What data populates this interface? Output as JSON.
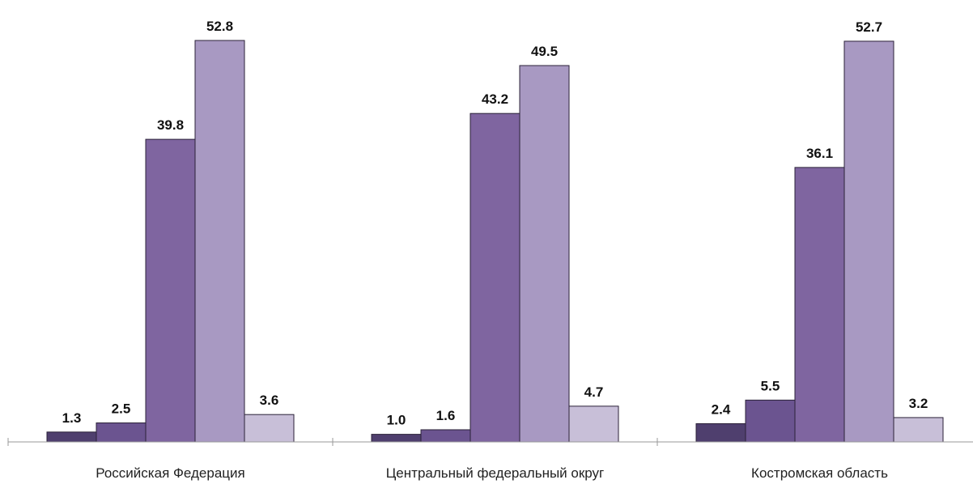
{
  "chart_data": {
    "type": "bar",
    "categories": [
      "Российская Федерация",
      "Центральный федеральный округ",
      "Костромская область"
    ],
    "series": [
      {
        "values": [
          1.3,
          1.0,
          2.4
        ],
        "color": "#4f3f6e"
      },
      {
        "values": [
          2.5,
          1.6,
          5.5
        ],
        "color": "#6b5490"
      },
      {
        "values": [
          39.8,
          43.2,
          36.1
        ],
        "color": "#7f65a0"
      },
      {
        "values": [
          52.8,
          49.5,
          52.7
        ],
        "color": "#a899c2"
      },
      {
        "values": [
          3.6,
          4.7,
          3.2
        ],
        "color": "#c8bfd8"
      }
    ],
    "value_labels": [
      [
        "1.3",
        "1.0",
        "2.4"
      ],
      [
        "2.5",
        "1.6",
        "5.5"
      ],
      [
        "39.8",
        "43.2",
        "36.1"
      ],
      [
        "52.8",
        "49.5",
        "52.7"
      ],
      [
        "3.6",
        "4.7",
        "3.2"
      ]
    ],
    "ylim": [
      0,
      52.8
    ],
    "grid": false,
    "legend": "none",
    "axis_color": "#999999"
  }
}
